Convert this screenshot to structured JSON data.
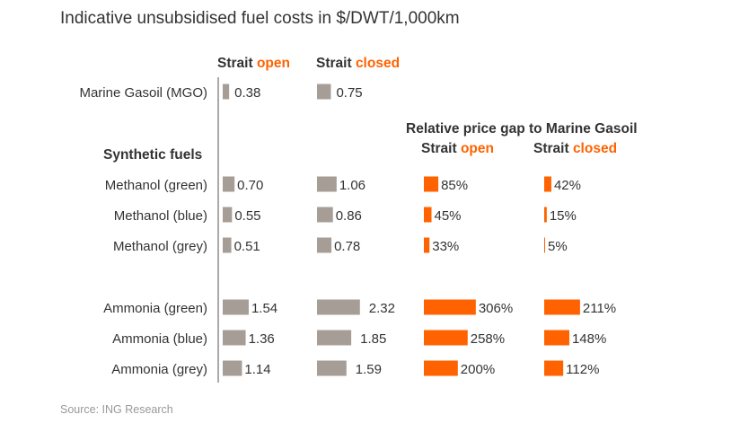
{
  "chart_data": {
    "type": "bar",
    "title": "Indicative unsubsidised fuel costs in $/DWT/1,000km",
    "source": "Source: ING Research",
    "cost_header": {
      "open": {
        "word": "Strait",
        "state": "open"
      },
      "closed": {
        "word": "Strait",
        "state": "closed"
      }
    },
    "gap_header": {
      "title": "Relative price gap to Marine Gasoil",
      "open": {
        "word": "Strait",
        "state": "open"
      },
      "closed": {
        "word": "Strait",
        "state": "closed"
      }
    },
    "section_label": "Synthetic fuels",
    "reference": {
      "name": "Marine Gasoil (MGO)",
      "open": 0.38,
      "closed": 0.75,
      "open_label": "0.38",
      "closed_label": "0.75"
    },
    "categories": [
      "Methanol (green)",
      "Methanol (blue)",
      "Methanol (grey)",
      "Ammonia (green)",
      "Ammonia (blue)",
      "Ammonia (grey)"
    ],
    "series": [
      {
        "values": [
          0.7,
          0.55,
          0.51,
          1.54,
          1.36,
          1.14
        ],
        "labels": [
          "0.70",
          "0.55",
          "0.51",
          "1.54",
          "1.36",
          "1.14"
        ]
      },
      {
        "values": [
          1.06,
          0.86,
          0.78,
          2.32,
          1.85,
          1.59
        ],
        "labels": [
          "1.06",
          "0.86",
          "0.78",
          "2.32",
          "1.85",
          "1.59"
        ]
      },
      {
        "values": [
          85,
          45,
          33,
          306,
          258,
          200
        ],
        "labels": [
          "85%",
          "45%",
          "33%",
          "306%",
          "258%",
          "200%"
        ]
      },
      {
        "values": [
          42,
          15,
          5,
          211,
          148,
          112
        ],
        "labels": [
          "42%",
          "15%",
          "5%",
          "211%",
          "148%",
          "112%"
        ]
      }
    ],
    "colors": {
      "cost_bar": "#a69d96",
      "gap_bar": "#ff6200",
      "highlight_text": "#ff6200",
      "text": "#333333",
      "source_text": "#999999"
    }
  }
}
